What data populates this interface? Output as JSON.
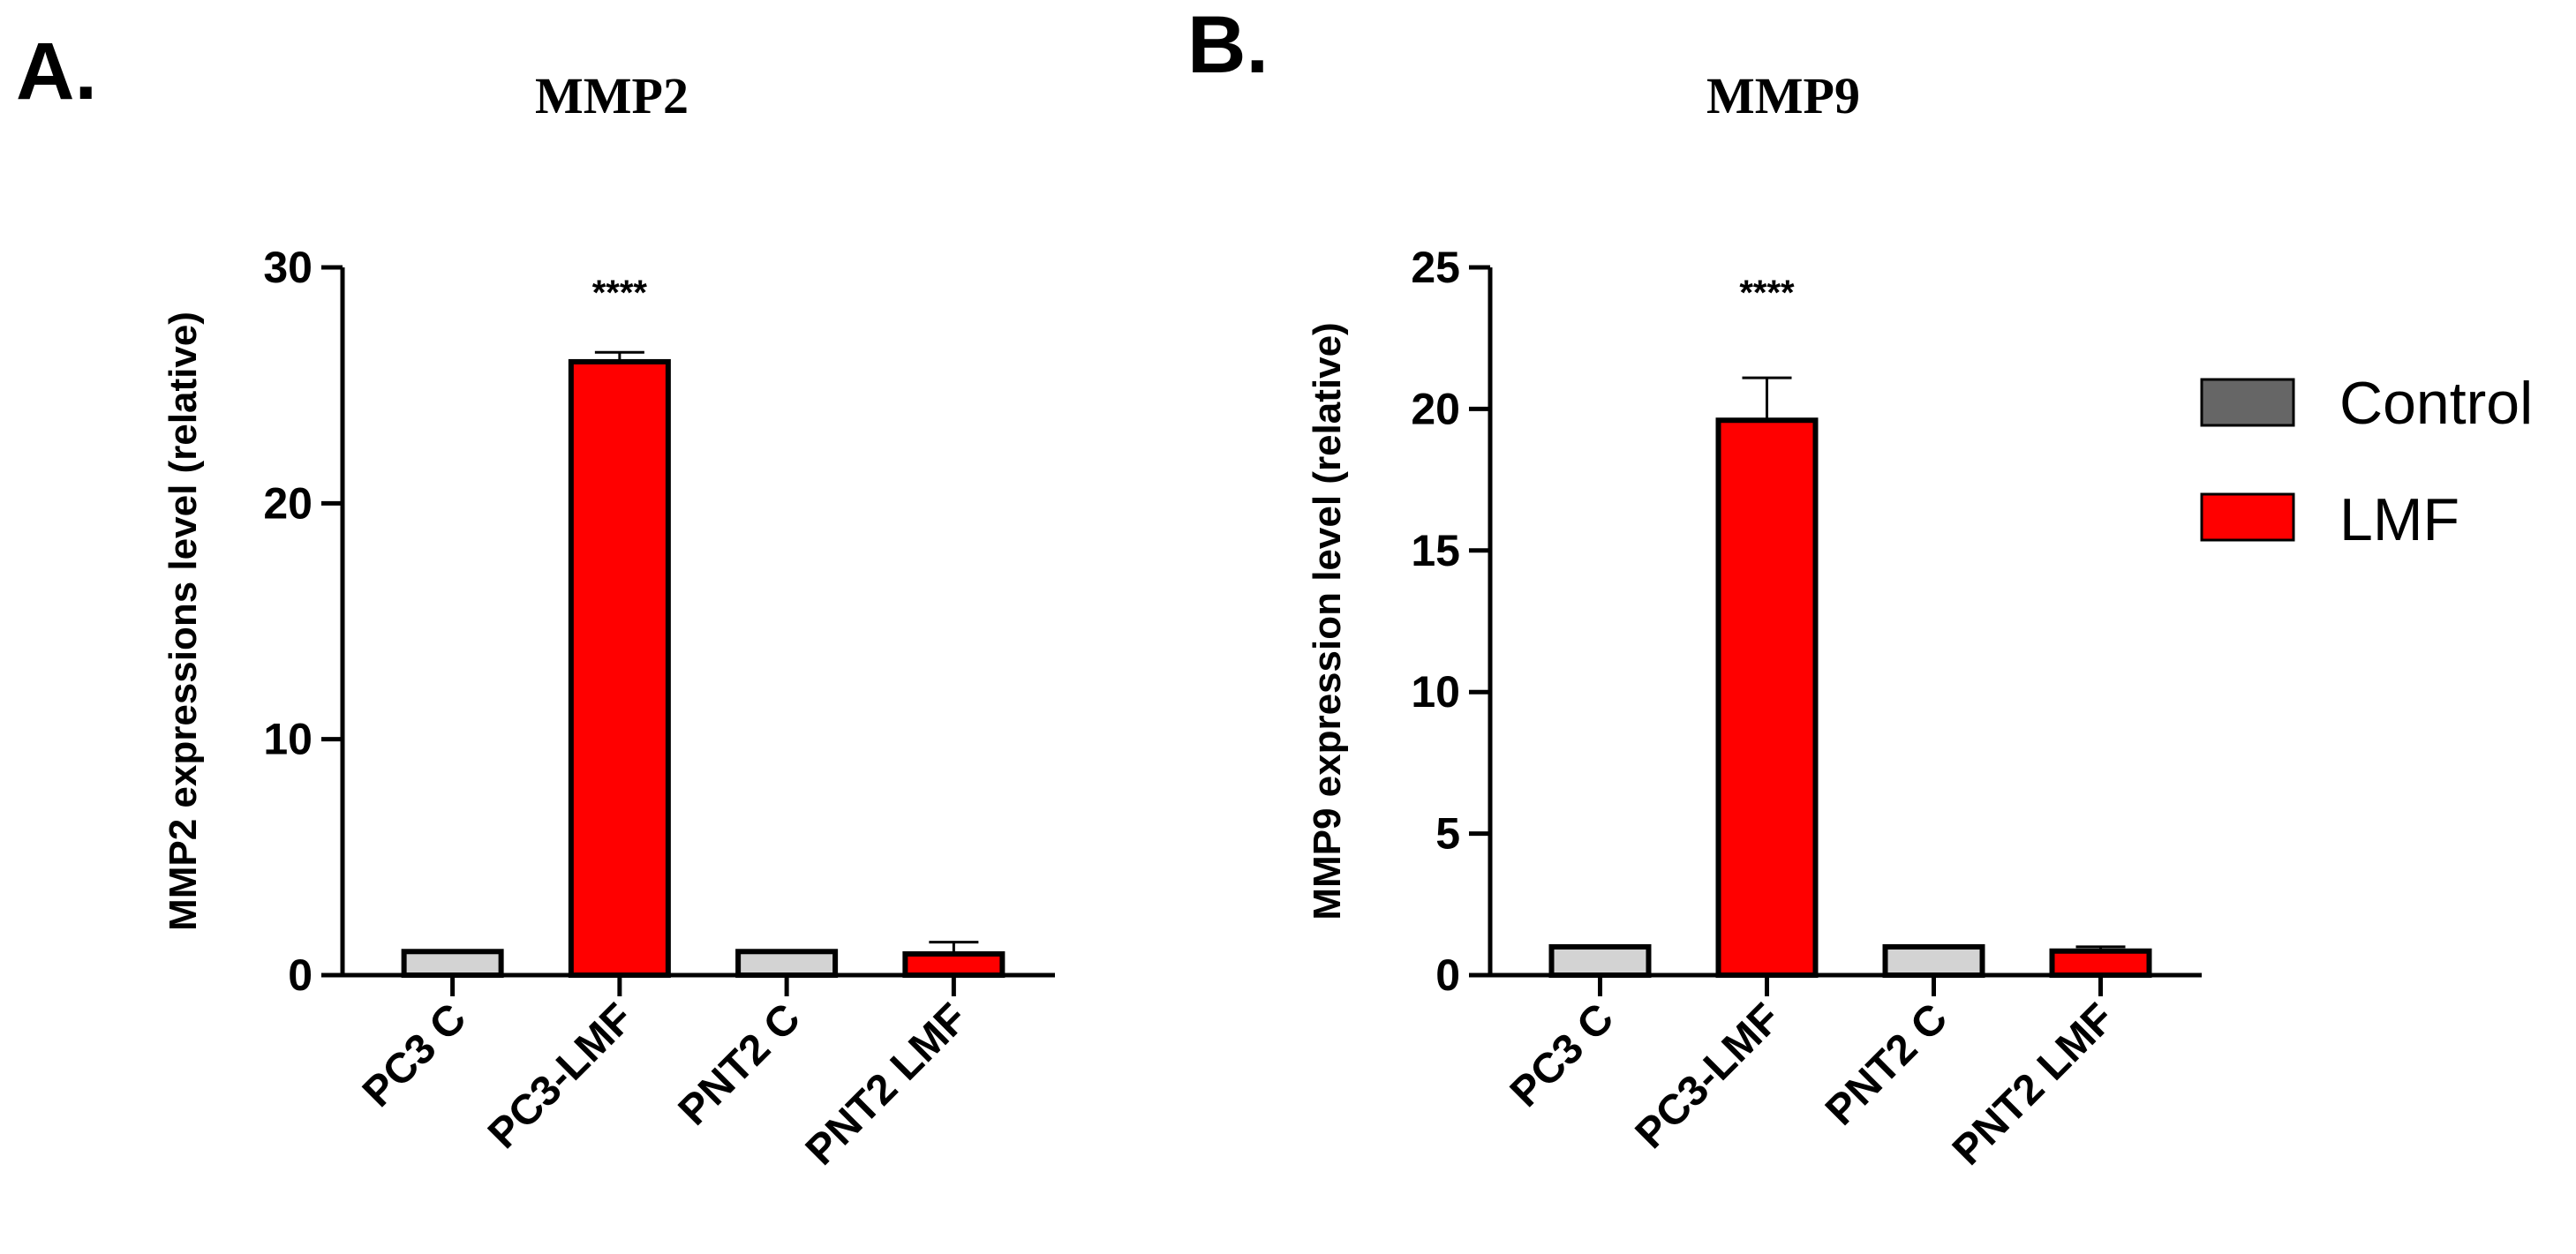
{
  "figure": {
    "panel_a": "A.",
    "panel_b": "B."
  },
  "colors": {
    "control": "#d3d3d3",
    "lmf": "#ff0000",
    "legend_control": "#666666",
    "axis": "#000000"
  },
  "legend": {
    "control_label": "Control",
    "lmf_label": "LMF"
  },
  "chart_data": [
    {
      "type": "bar",
      "title": "MMP2",
      "ylabel": "MMP2 expressions level (relative)",
      "xlabel": "",
      "ylim": [
        0,
        30
      ],
      "yticks": [
        0,
        10,
        20,
        30
      ],
      "categories": [
        "PC3 C",
        "PC3-LMF",
        "PNT2 C",
        "PNT2 LMF"
      ],
      "values": [
        1.0,
        26.0,
        1.0,
        0.9
      ],
      "errors": [
        0.0,
        0.4,
        0.0,
        0.5
      ],
      "groups": [
        "control",
        "lmf",
        "control",
        "lmf"
      ],
      "annotations": [
        {
          "category": "PC3-LMF",
          "text": "****"
        }
      ]
    },
    {
      "type": "bar",
      "title": "MMP9",
      "ylabel": "MMP9 expression level (relative)",
      "xlabel": "",
      "ylim": [
        0,
        25
      ],
      "yticks": [
        0,
        5,
        10,
        15,
        20,
        25
      ],
      "categories": [
        "PC3 C",
        "PC3-LMF",
        "PNT2 C",
        "PNT2 LMF"
      ],
      "values": [
        1.0,
        19.6,
        1.0,
        0.85
      ],
      "errors": [
        0.0,
        1.5,
        0.0,
        0.15
      ],
      "groups": [
        "control",
        "lmf",
        "control",
        "lmf"
      ],
      "annotations": [
        {
          "category": "PC3-LMF",
          "text": "****"
        }
      ]
    }
  ]
}
